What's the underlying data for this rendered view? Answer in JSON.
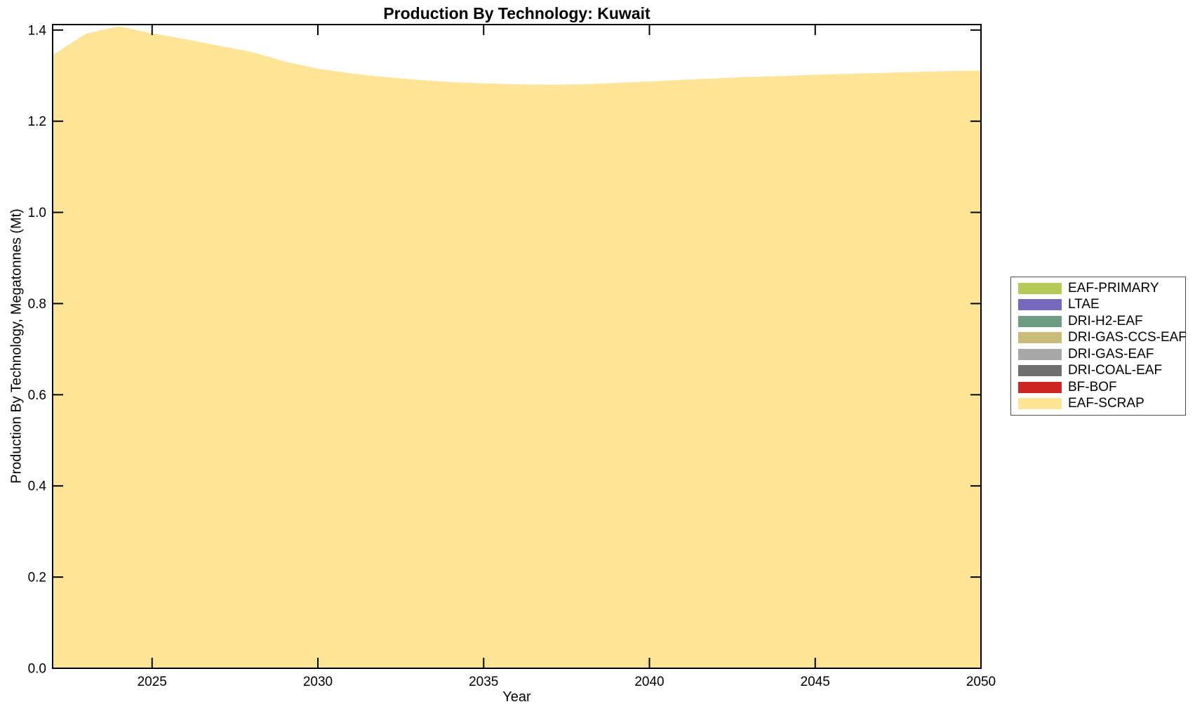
{
  "figure": {
    "background_color": "#ffffff",
    "axis_color": "#000000",
    "area_fill_color": "#fde496"
  },
  "chart_data": {
    "type": "area",
    "title": "Production By Technology: Kuwait",
    "xlabel": "Year",
    "ylabel": "Production By Technology, Megatonnes (Mt)",
    "xlim": [
      2022,
      2050
    ],
    "ylim": [
      0,
      1.412
    ],
    "grid": false,
    "legend_position": "right-outside",
    "xticks": [
      2025,
      2030,
      2035,
      2040,
      2045,
      2050
    ],
    "xtick_labels": [
      "2025",
      "2030",
      "2035",
      "2040",
      "2045",
      "2050"
    ],
    "yticks": [
      0.0,
      0.2,
      0.4,
      0.6,
      0.8,
      1.0,
      1.2,
      1.4
    ],
    "ytick_labels": [
      "0.0",
      "0.2",
      "0.4",
      "0.6",
      "0.8",
      "1.0",
      "1.2",
      "1.4"
    ],
    "x": [
      2022,
      2023,
      2024,
      2025,
      2026,
      2027,
      2028,
      2029,
      2030,
      2031,
      2032,
      2033,
      2034,
      2035,
      2036,
      2037,
      2038,
      2039,
      2040,
      2041,
      2042,
      2043,
      2044,
      2045,
      2046,
      2047,
      2048,
      2049,
      2050
    ],
    "series": [
      {
        "name": "EAF-PRIMARY",
        "color": "#b6ca5a",
        "values": 0
      },
      {
        "name": "LTAE",
        "color": "#7568bd",
        "values": 0
      },
      {
        "name": "DRI-H2-EAF",
        "color": "#6f9c84",
        "values": 0
      },
      {
        "name": "DRI-GAS-CCS-EAF",
        "color": "#c9bc78",
        "values": 0
      },
      {
        "name": "DRI-GAS-EAF",
        "color": "#a8a8a8",
        "values": 0
      },
      {
        "name": "DRI-COAL-EAF",
        "color": "#707070",
        "values": 0
      },
      {
        "name": "BF-BOF",
        "color": "#cc2522",
        "values": 0
      },
      {
        "name": "EAF-SCRAP",
        "color": "#fde496",
        "values": [
          1.345,
          1.392,
          1.408,
          1.393,
          1.38,
          1.366,
          1.352,
          1.331,
          1.315,
          1.305,
          1.297,
          1.291,
          1.286,
          1.283,
          1.281,
          1.28,
          1.281,
          1.284,
          1.287,
          1.291,
          1.294,
          1.297,
          1.299,
          1.302,
          1.304,
          1.306,
          1.308,
          1.31,
          1.311
        ]
      }
    ]
  }
}
